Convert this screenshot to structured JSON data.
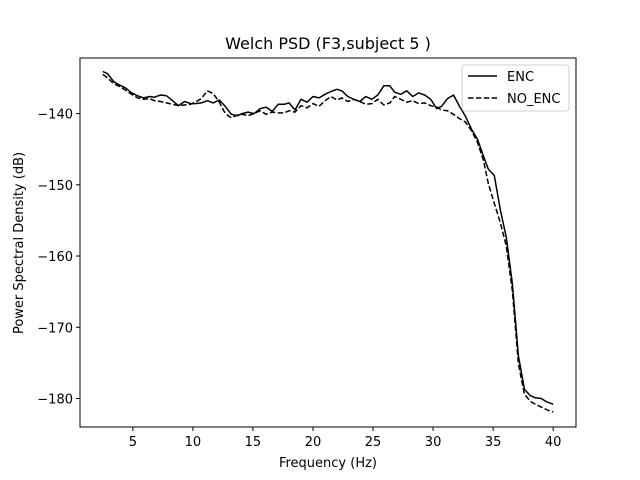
{
  "chart_data": {
    "type": "line",
    "title": "Welch PSD (F3,subject 5 )",
    "xlabel": "Frequency (Hz)",
    "ylabel": "Power Spectral Density (dB)",
    "xlim": [
      0.6,
      41.9
    ],
    "ylim": [
      -184.0,
      -132.2
    ],
    "xticks": [
      5,
      10,
      15,
      20,
      25,
      30,
      35,
      40
    ],
    "yticks": [
      -140,
      -150,
      -160,
      -170,
      -180
    ],
    "xtick_labels": [
      "5",
      "10",
      "15",
      "20",
      "25",
      "30",
      "35",
      "40"
    ],
    "ytick_labels": [
      "−140",
      "−150",
      "−160",
      "−170",
      "−180"
    ],
    "grid": false,
    "legend_position": "top-right",
    "series": [
      {
        "name": "ENC",
        "color": "#000000",
        "style": "solid",
        "x": [
          2.5,
          2.9,
          3.4,
          3.9,
          4.4,
          4.9,
          5.4,
          5.9,
          6.4,
          6.8,
          7.3,
          7.8,
          8.3,
          8.8,
          9.3,
          9.8,
          10.2,
          10.7,
          11.2,
          11.7,
          12.2,
          12.7,
          13.2,
          13.7,
          14.1,
          14.6,
          15.1,
          15.6,
          16.1,
          16.6,
          17.1,
          17.6,
          18.0,
          18.5,
          19.0,
          19.5,
          20.0,
          20.5,
          21.0,
          21.5,
          22.0,
          22.4,
          22.9,
          23.4,
          23.9,
          24.4,
          24.9,
          25.4,
          25.9,
          26.4,
          26.8,
          27.3,
          27.8,
          28.3,
          28.8,
          29.3,
          29.8,
          30.3,
          30.7,
          31.2,
          31.7,
          32.2,
          32.7,
          33.2,
          33.7,
          34.2,
          34.6,
          35.1,
          35.6,
          36.1,
          36.6,
          37.1,
          37.6,
          38.1,
          38.5,
          39.0,
          39.5,
          40.0
        ],
        "y": [
          -134.1,
          -134.4,
          -135.5,
          -136.0,
          -136.4,
          -137.1,
          -137.5,
          -137.8,
          -137.6,
          -137.7,
          -137.4,
          -137.5,
          -138.2,
          -138.9,
          -138.3,
          -138.6,
          -138.6,
          -138.5,
          -138.2,
          -138.5,
          -138.1,
          -139.0,
          -140.1,
          -140.3,
          -140.0,
          -139.8,
          -140.0,
          -139.3,
          -139.1,
          -139.7,
          -138.7,
          -138.7,
          -138.5,
          -139.5,
          -138.0,
          -138.4,
          -137.6,
          -137.8,
          -137.3,
          -136.9,
          -136.6,
          -136.8,
          -137.6,
          -138.0,
          -138.3,
          -137.6,
          -138.0,
          -137.4,
          -136.1,
          -136.1,
          -137.0,
          -137.3,
          -136.8,
          -137.6,
          -137.1,
          -137.4,
          -138.0,
          -139.3,
          -139.0,
          -137.9,
          -137.4,
          -139.0,
          -140.4,
          -142.2,
          -143.6,
          -146.0,
          -147.8,
          -148.7,
          -153.5,
          -157.4,
          -163.8,
          -174.0,
          -178.7,
          -179.6,
          -179.9,
          -180.0,
          -180.5,
          -180.8
        ]
      },
      {
        "name": "NO_ENC",
        "color": "#000000",
        "style": "dashed",
        "x": [
          2.5,
          2.9,
          3.4,
          3.9,
          4.4,
          4.9,
          5.4,
          5.9,
          6.4,
          6.8,
          7.3,
          7.8,
          8.3,
          8.8,
          9.3,
          9.8,
          10.2,
          10.7,
          11.2,
          11.7,
          12.2,
          12.7,
          13.2,
          13.7,
          14.1,
          14.6,
          15.1,
          15.6,
          16.1,
          16.6,
          17.1,
          17.6,
          18.0,
          18.5,
          19.0,
          19.5,
          20.0,
          20.5,
          21.0,
          21.5,
          22.0,
          22.4,
          22.9,
          23.4,
          23.9,
          24.4,
          24.9,
          25.4,
          25.9,
          26.4,
          26.8,
          27.3,
          27.8,
          28.3,
          28.8,
          29.3,
          29.8,
          30.3,
          30.7,
          31.2,
          31.7,
          32.2,
          32.7,
          33.2,
          33.7,
          34.2,
          34.6,
          35.1,
          35.6,
          36.1,
          36.6,
          37.1,
          37.6,
          38.1,
          38.5,
          39.0,
          39.5,
          40.0
        ],
        "y": [
          -134.5,
          -135.0,
          -135.8,
          -136.2,
          -136.7,
          -137.3,
          -137.8,
          -138.0,
          -137.9,
          -138.2,
          -138.3,
          -138.5,
          -138.7,
          -138.9,
          -138.8,
          -138.7,
          -138.4,
          -137.9,
          -136.8,
          -137.2,
          -138.4,
          -140.0,
          -140.6,
          -140.2,
          -140.1,
          -140.3,
          -140.0,
          -139.6,
          -140.1,
          -139.8,
          -139.9,
          -139.9,
          -139.6,
          -139.8,
          -138.9,
          -139.2,
          -138.6,
          -139.0,
          -138.2,
          -137.6,
          -138.1,
          -137.8,
          -138.3,
          -138.0,
          -138.3,
          -138.7,
          -138.6,
          -138.0,
          -138.8,
          -138.5,
          -137.6,
          -138.0,
          -138.4,
          -138.2,
          -138.6,
          -138.5,
          -138.9,
          -139.1,
          -139.5,
          -139.6,
          -140.1,
          -140.7,
          -141.2,
          -142.4,
          -144.0,
          -146.6,
          -149.8,
          -152.6,
          -155.3,
          -158.6,
          -164.8,
          -175.1,
          -179.4,
          -180.4,
          -180.8,
          -181.2,
          -181.6,
          -181.9
        ]
      }
    ]
  }
}
